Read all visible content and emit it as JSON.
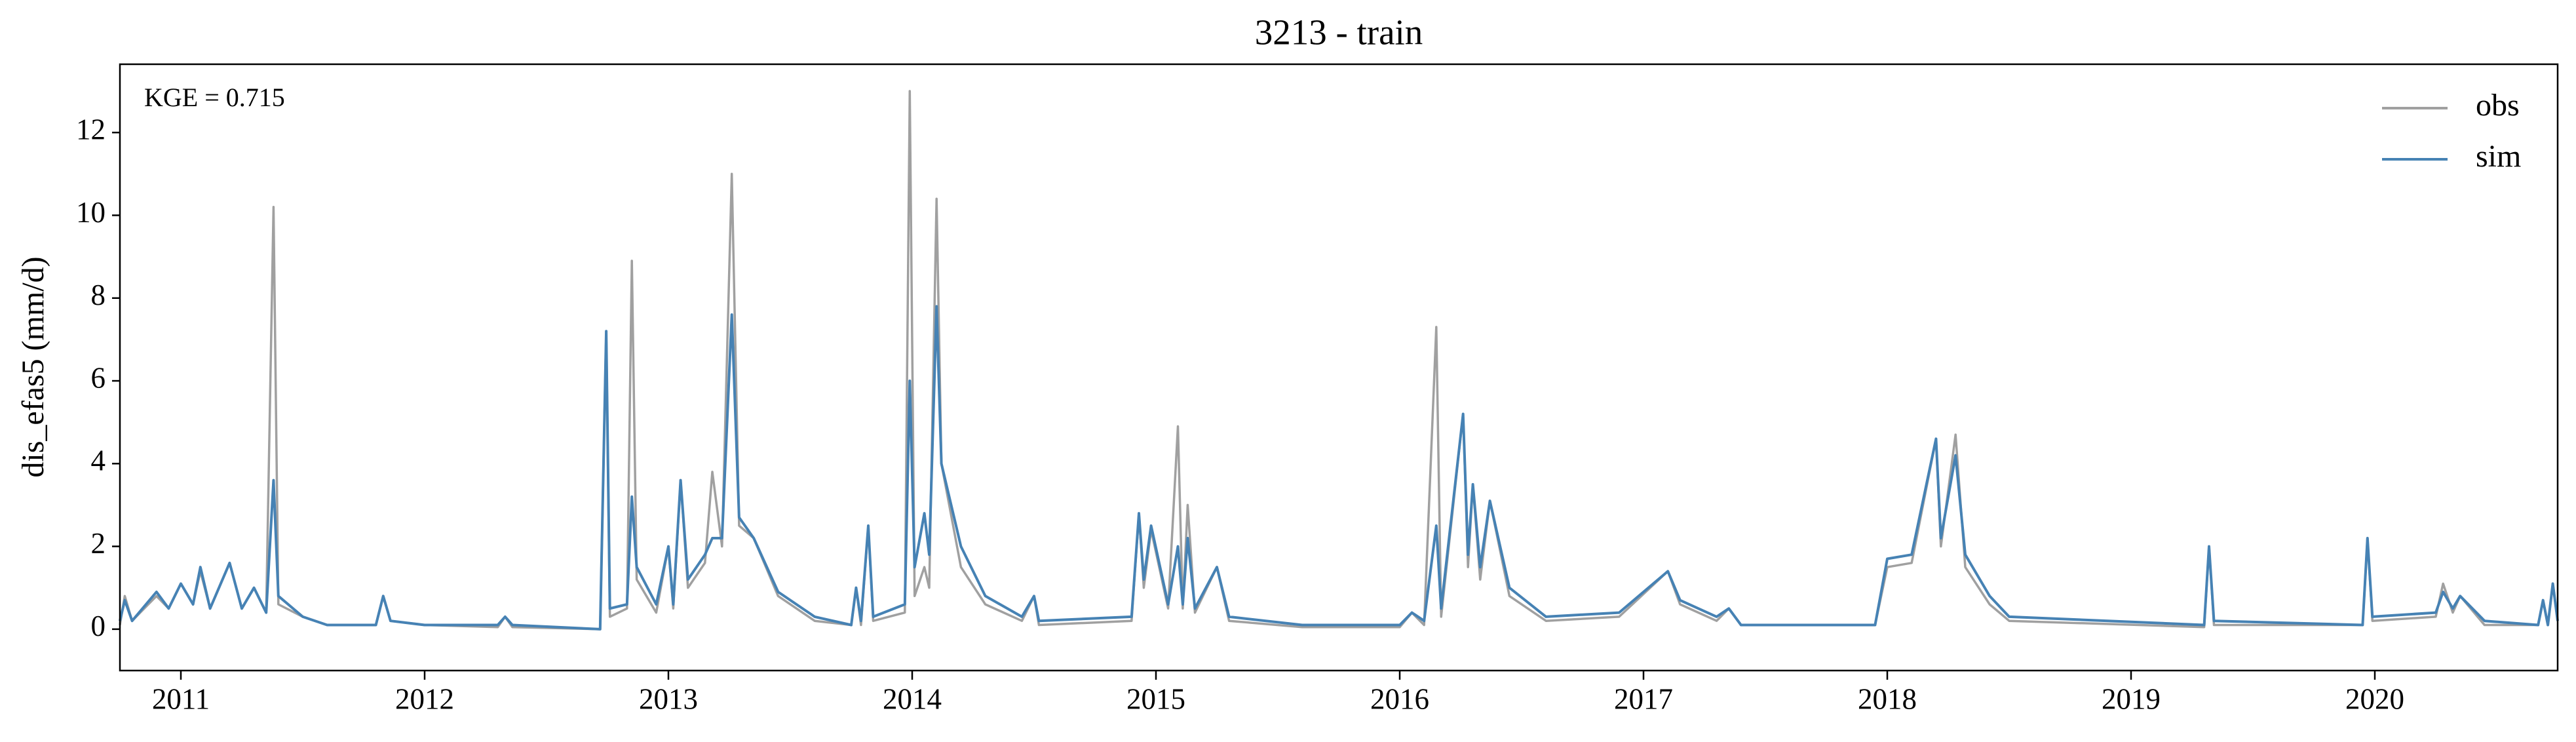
{
  "chart_data": {
    "type": "line",
    "title": "3213 - train",
    "ylabel": "dis_efas5 (mm/d)",
    "annotation": "KGE = 0.715",
    "legend": "upper right",
    "x": [
      2010.75,
      2010.77,
      2010.8,
      2010.9,
      2010.95,
      2011.0,
      2011.05,
      2011.08,
      2011.12,
      2011.2,
      2011.25,
      2011.3,
      2011.35,
      2011.38,
      2011.4,
      2011.5,
      2011.6,
      2011.8,
      2011.83,
      2011.86,
      2012.0,
      2012.3,
      2012.33,
      2012.36,
      2012.72,
      2012.745,
      2012.76,
      2012.83,
      2012.85,
      2012.87,
      2012.95,
      2013.0,
      2013.02,
      2013.05,
      2013.08,
      2013.15,
      2013.18,
      2013.22,
      2013.26,
      2013.29,
      2013.35,
      2013.45,
      2013.6,
      2013.75,
      2013.77,
      2013.79,
      2013.82,
      2013.84,
      2013.97,
      2013.99,
      2014.01,
      2014.05,
      2014.07,
      2014.1,
      2014.12,
      2014.2,
      2014.3,
      2014.45,
      2014.5,
      2014.52,
      2014.9,
      2014.93,
      2014.95,
      2014.98,
      2015.05,
      2015.09,
      2015.11,
      2015.13,
      2015.16,
      2015.25,
      2015.3,
      2015.6,
      2016.0,
      2016.05,
      2016.1,
      2016.15,
      2016.17,
      2016.26,
      2016.28,
      2016.3,
      2016.33,
      2016.37,
      2016.45,
      2016.6,
      2016.9,
      2017.1,
      2017.15,
      2017.3,
      2017.35,
      2017.4,
      2017.95,
      2018.0,
      2018.1,
      2018.2,
      2018.22,
      2018.28,
      2018.32,
      2018.42,
      2018.5,
      2019.3,
      2019.32,
      2019.34,
      2019.95,
      2019.97,
      2019.99,
      2020.25,
      2020.28,
      2020.32,
      2020.35,
      2020.45,
      2020.67,
      2020.69,
      2020.71,
      2020.73,
      2020.75
    ],
    "series": [
      {
        "name": "obs",
        "color": "#a0a0a0",
        "values": [
          0.1,
          0.8,
          0.2,
          0.8,
          0.5,
          1.1,
          0.6,
          1.4,
          0.5,
          1.6,
          0.5,
          1.0,
          0.4,
          10.2,
          0.6,
          0.3,
          0.1,
          0.1,
          0.8,
          0.2,
          0.1,
          0.05,
          0.3,
          0.05,
          0.0,
          7.2,
          0.3,
          0.5,
          8.9,
          1.2,
          0.4,
          2.0,
          0.5,
          3.6,
          1.0,
          1.6,
          3.8,
          2.0,
          11.0,
          2.5,
          2.2,
          0.8,
          0.2,
          0.1,
          1.0,
          0.1,
          2.5,
          0.2,
          0.4,
          13.0,
          0.8,
          1.5,
          1.0,
          10.4,
          4.0,
          1.5,
          0.6,
          0.2,
          0.8,
          0.1,
          0.2,
          2.8,
          1.0,
          2.4,
          0.5,
          4.9,
          0.5,
          3.0,
          0.4,
          1.5,
          0.2,
          0.05,
          0.05,
          0.4,
          0.1,
          7.3,
          0.3,
          5.2,
          1.5,
          3.5,
          1.2,
          3.1,
          0.8,
          0.2,
          0.3,
          1.4,
          0.6,
          0.2,
          0.5,
          0.1,
          0.1,
          1.5,
          1.6,
          4.6,
          2.0,
          4.7,
          1.5,
          0.6,
          0.2,
          0.05,
          2.0,
          0.1,
          0.1,
          2.2,
          0.2,
          0.3,
          1.1,
          0.4,
          0.8,
          0.1,
          0.1,
          0.7,
          0.1,
          1.1,
          0.2
        ]
      },
      {
        "name": "sim",
        "color": "#4682b4",
        "values": [
          0.2,
          0.7,
          0.2,
          0.9,
          0.5,
          1.1,
          0.6,
          1.5,
          0.5,
          1.6,
          0.5,
          1.0,
          0.4,
          3.6,
          0.8,
          0.3,
          0.1,
          0.1,
          0.8,
          0.2,
          0.1,
          0.1,
          0.3,
          0.1,
          0.0,
          7.2,
          0.5,
          0.6,
          3.2,
          1.5,
          0.6,
          2.0,
          0.6,
          3.6,
          1.2,
          1.8,
          2.2,
          2.2,
          7.6,
          2.7,
          2.2,
          0.9,
          0.3,
          0.1,
          1.0,
          0.2,
          2.5,
          0.3,
          0.6,
          6.0,
          1.5,
          2.8,
          1.8,
          7.8,
          4.0,
          2.0,
          0.8,
          0.3,
          0.8,
          0.2,
          0.3,
          2.8,
          1.2,
          2.5,
          0.6,
          2.0,
          0.6,
          2.2,
          0.5,
          1.5,
          0.3,
          0.1,
          0.1,
          0.4,
          0.2,
          2.5,
          0.5,
          5.2,
          1.8,
          3.5,
          1.5,
          3.1,
          1.0,
          0.3,
          0.4,
          1.4,
          0.7,
          0.3,
          0.5,
          0.1,
          0.1,
          1.7,
          1.8,
          4.6,
          2.2,
          4.2,
          1.8,
          0.8,
          0.3,
          0.1,
          2.0,
          0.2,
          0.1,
          2.2,
          0.3,
          0.4,
          0.9,
          0.5,
          0.8,
          0.2,
          0.1,
          0.7,
          0.1,
          1.1,
          0.2
        ]
      }
    ],
    "xlim": [
      2010.75,
      2020.75
    ],
    "xticks": [
      2011,
      2012,
      2013,
      2014,
      2015,
      2016,
      2017,
      2018,
      2019,
      2020
    ],
    "ylim": [
      -1,
      13.65
    ],
    "yticks": [
      0,
      2,
      4,
      6,
      8,
      10,
      12
    ]
  }
}
